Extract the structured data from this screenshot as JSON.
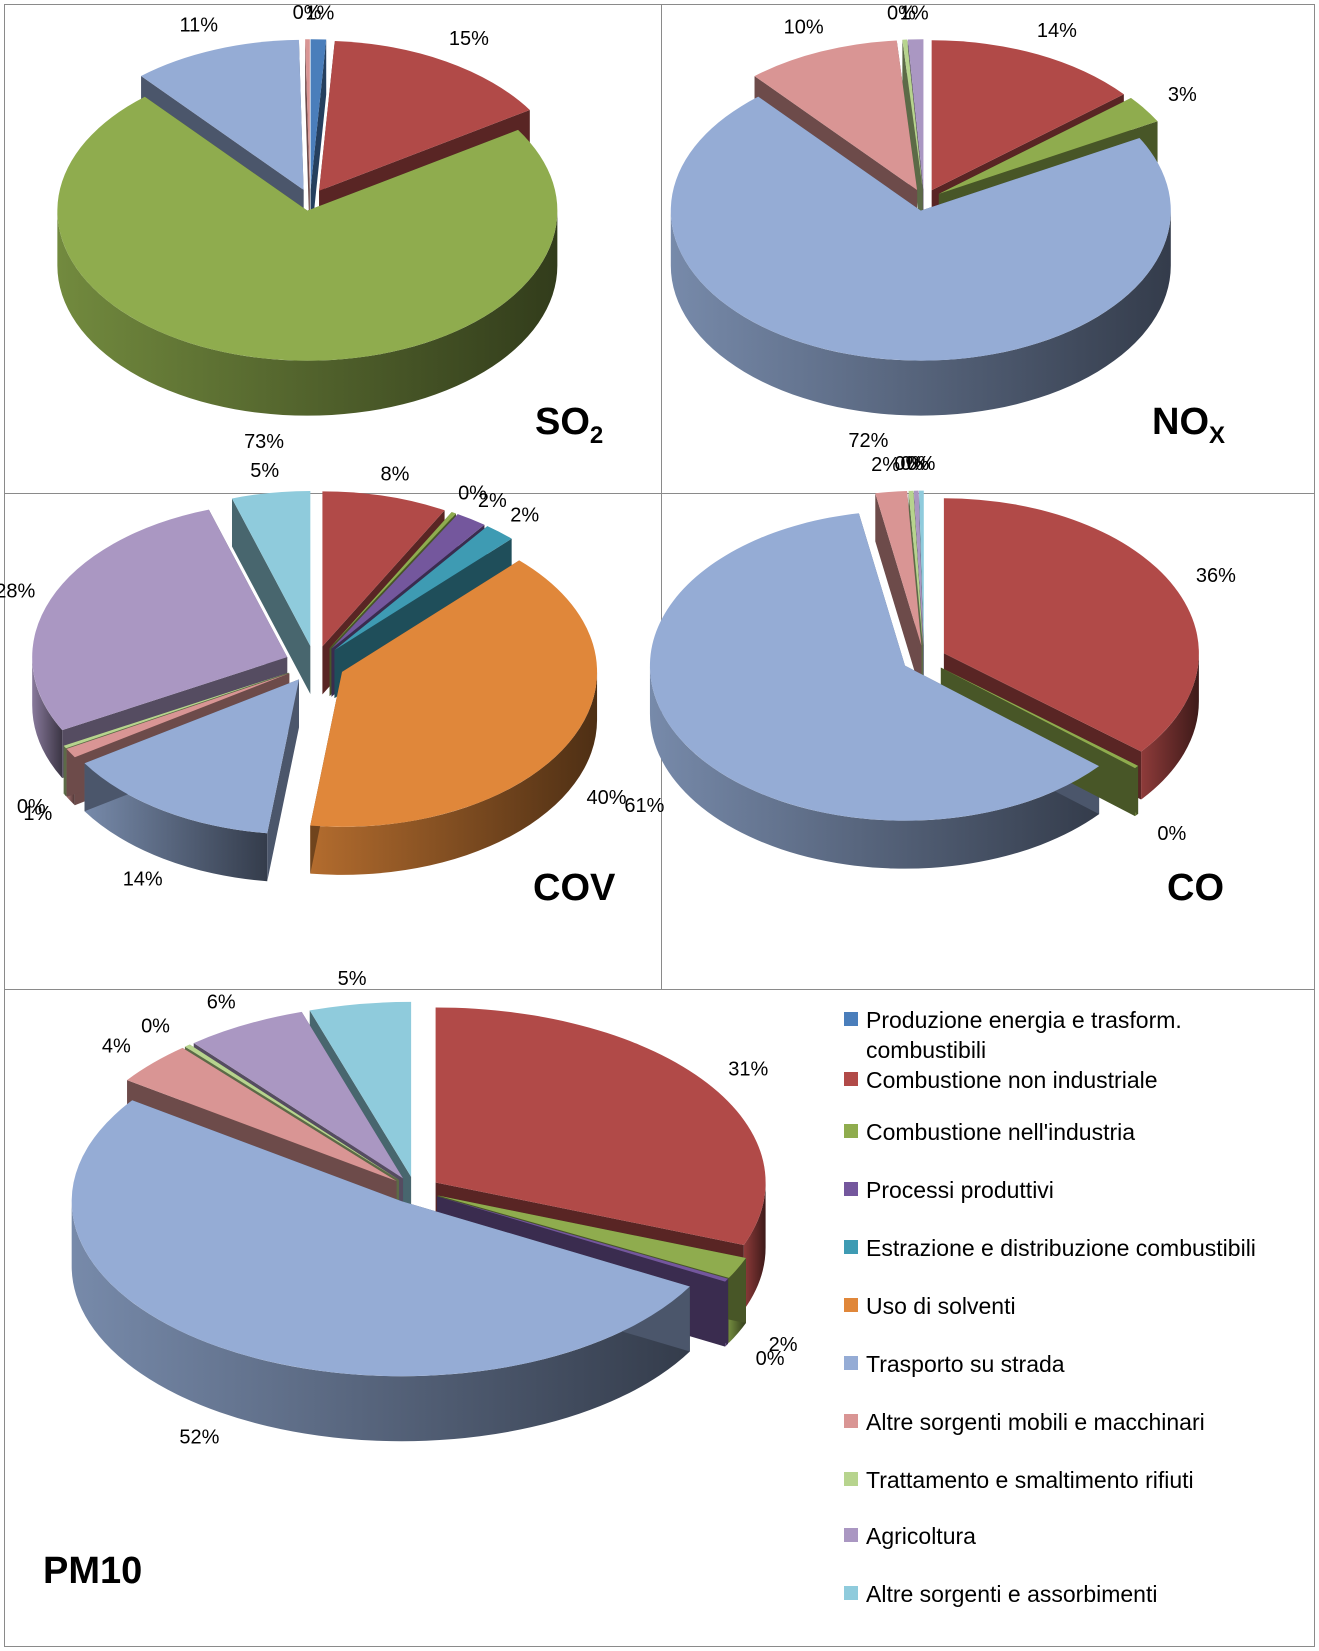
{
  "categories": [
    {
      "name": "Produzione energia e trasform. combustibili",
      "color": "#4a7ebb"
    },
    {
      "name": "Combustione non industriale",
      "color": "#b14a48"
    },
    {
      "name": "Combustione nell'industria",
      "color": "#8fac4e"
    },
    {
      "name": "Processi produttivi",
      "color": "#74579d"
    },
    {
      "name": "Estrazione e distribuzione combustibili",
      "color": "#3e9bb3"
    },
    {
      "name": "Uso di solventi",
      "color": "#e0873a"
    },
    {
      "name": "Trasporto su strada",
      "color": "#95acd5"
    },
    {
      "name": "Altre sorgenti mobili e macchinari",
      "color": "#d99594"
    },
    {
      "name": "Trattamento e smaltimento rifiuti",
      "color": "#b7d48e"
    },
    {
      "name": "Agricoltura",
      "color": "#aa97c2"
    },
    {
      "name": "Altre sorgenti e assorbimenti",
      "color": "#8fcbdc"
    }
  ],
  "chart_data": [
    {
      "type": "pie",
      "title": "SO",
      "title_sub": "2",
      "labels": [
        "1%",
        "15%",
        "73%",
        "11%",
        "0%"
      ],
      "slices": [
        {
          "category": "Produzione energia e trasform. combustibili",
          "value": 1
        },
        {
          "category": "Combustione non industriale",
          "value": 15
        },
        {
          "category": "Combustione nell'industria",
          "value": 73
        },
        {
          "category": "Trasporto su strada",
          "value": 11
        },
        {
          "category": "Altre sorgenti mobili e macchinari",
          "value": 0
        }
      ]
    },
    {
      "type": "pie",
      "title": "NO",
      "title_sub": "X",
      "labels": [
        "14%",
        "3%",
        "72%",
        "10%",
        "0%",
        "1%"
      ],
      "slices": [
        {
          "category": "Combustione non industriale",
          "value": 14
        },
        {
          "category": "Combustione nell'industria",
          "value": 3
        },
        {
          "category": "Trasporto su strada",
          "value": 72
        },
        {
          "category": "Altre sorgenti mobili e macchinari",
          "value": 10
        },
        {
          "category": "Trattamento e smaltimento rifiuti",
          "value": 0
        },
        {
          "category": "Agricoltura",
          "value": 1
        }
      ]
    },
    {
      "type": "pie",
      "title": "COV",
      "title_sub": "",
      "labels": [
        "8%",
        "0%",
        "2%",
        "2%",
        "40%",
        "14%",
        "1%",
        "0%",
        "28%",
        "5%"
      ],
      "slices": [
        {
          "category": "Combustione non industriale",
          "value": 8
        },
        {
          "category": "Combustione nell'industria",
          "value": 0
        },
        {
          "category": "Processi produttivi",
          "value": 2
        },
        {
          "category": "Estrazione e distribuzione combustibili",
          "value": 2
        },
        {
          "category": "Uso di solventi",
          "value": 40
        },
        {
          "category": "Trasporto su strada",
          "value": 14
        },
        {
          "category": "Altre sorgenti mobili e macchinari",
          "value": 1
        },
        {
          "category": "Trattamento e smaltimento rifiuti",
          "value": 0
        },
        {
          "category": "Agricoltura",
          "value": 28
        },
        {
          "category": "Altre sorgenti e assorbimenti",
          "value": 5
        }
      ]
    },
    {
      "type": "pie",
      "title": "CO",
      "title_sub": "",
      "labels": [
        "36%",
        "0%",
        "61%",
        "2%",
        "0%",
        "0%",
        "0%"
      ],
      "slices": [
        {
          "category": "Combustione non industriale",
          "value": 36
        },
        {
          "category": "Combustione nell'industria",
          "value": 0
        },
        {
          "category": "Trasporto su strada",
          "value": 61
        },
        {
          "category": "Altre sorgenti mobili e macchinari",
          "value": 2
        },
        {
          "category": "Trattamento e smaltimento rifiuti",
          "value": 0
        },
        {
          "category": "Agricoltura",
          "value": 0
        },
        {
          "category": "Altre sorgenti e assorbimenti",
          "value": 0
        }
      ]
    },
    {
      "type": "pie",
      "title": "PM10",
      "title_sub": "",
      "labels": [
        "31%",
        "2%",
        "0%",
        "52%",
        "4%",
        "0%",
        "6%",
        "5%"
      ],
      "slices": [
        {
          "category": "Combustione non industriale",
          "value": 31
        },
        {
          "category": "Combustione nell'industria",
          "value": 2
        },
        {
          "category": "Processi produttivi",
          "value": 0
        },
        {
          "category": "Trasporto su strada",
          "value": 52
        },
        {
          "category": "Altre sorgenti mobili e macchinari",
          "value": 4
        },
        {
          "category": "Trattamento e smaltimento rifiuti",
          "value": 0
        },
        {
          "category": "Agricoltura",
          "value": 6
        },
        {
          "category": "Altre sorgenti e assorbimenti",
          "value": 5
        }
      ]
    }
  ]
}
